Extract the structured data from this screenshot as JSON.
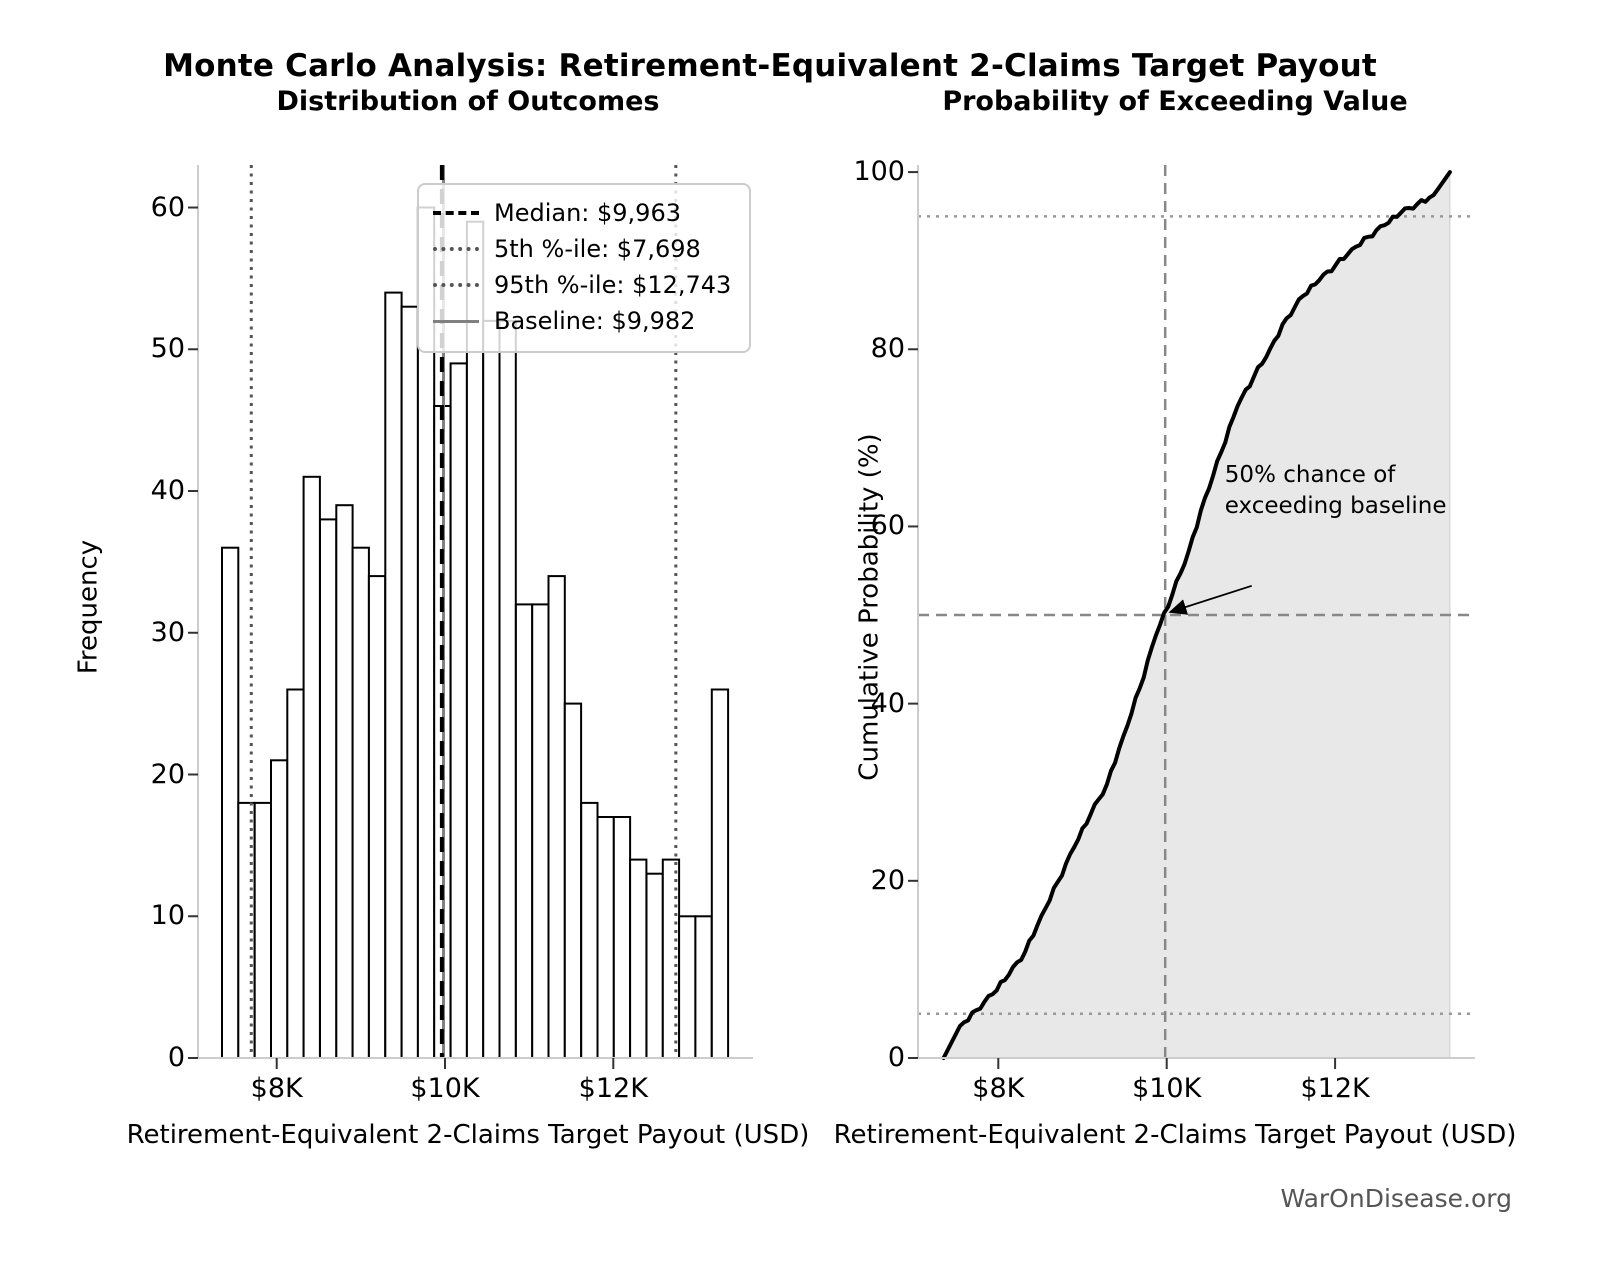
{
  "figure": {
    "title": "Monte Carlo Analysis: Retirement-Equivalent 2-Claims Target Payout",
    "footer": "WarOnDisease.org"
  },
  "chart_data": [
    {
      "type": "bar",
      "subtype": "histogram",
      "title": "Distribution of Outcomes",
      "xlabel": "Retirement-Equivalent 2-Claims Target Payout (USD)",
      "ylabel": "Frequency",
      "bin_start_usd": 7350,
      "bin_width_usd": 194,
      "frequencies": [
        36,
        18,
        18,
        21,
        26,
        41,
        38,
        39,
        36,
        34,
        54,
        53,
        60,
        46,
        49,
        59,
        52,
        52,
        32,
        32,
        34,
        25,
        18,
        17,
        17,
        14,
        13,
        14,
        10,
        10,
        26
      ],
      "xlim_usd": [
        7050,
        13660
      ],
      "ylim": [
        0,
        63
      ],
      "xticks": [
        {
          "value_usd": 8000,
          "label": "$8K"
        },
        {
          "value_usd": 10000,
          "label": "$10K"
        },
        {
          "value_usd": 12000,
          "label": "$12K"
        }
      ],
      "yticks": [
        0,
        10,
        20,
        30,
        40,
        50,
        60
      ],
      "grid": false,
      "bar_fill": "#ffffff",
      "bar_stroke": "#000000",
      "legend_position": "upper-right-inside",
      "reference_lines": [
        {
          "name": "median",
          "value_usd": 9963,
          "style": "dashed",
          "color": "#000000",
          "label": "Median: $9,963"
        },
        {
          "name": "5th-percentile",
          "value_usd": 7698,
          "style": "dotted",
          "color": "#555555",
          "label": "5th %-ile: $7,698"
        },
        {
          "name": "95th-percentile",
          "value_usd": 12743,
          "style": "dotted",
          "color": "#555555",
          "label": "95th %-ile: $12,743"
        },
        {
          "name": "baseline",
          "value_usd": 9982,
          "style": "solid",
          "color": "#808080",
          "label": "Baseline: $9,982"
        }
      ]
    },
    {
      "type": "line",
      "subtype": "empirical-cdf",
      "title": "Probability of Exceeding Value",
      "xlabel": "Retirement-Equivalent 2-Claims Target Payout (USD)",
      "ylabel": "Cumulative Probability (%)",
      "x_start_usd": 7350,
      "x_step_usd": 194,
      "cumulative_pct": [
        0,
        3.6,
        5.4,
        7.2,
        9.4,
        12.0,
        16.1,
        19.9,
        23.8,
        27.5,
        30.9,
        36.3,
        41.7,
        47.7,
        52.3,
        57.2,
        63.2,
        68.4,
        73.6,
        76.9,
        80.1,
        83.5,
        86.0,
        87.8,
        89.5,
        91.3,
        92.7,
        94.0,
        95.4,
        96.4,
        97.4,
        100
      ],
      "xlim_usd": [
        7050,
        13660
      ],
      "ylim": [
        0,
        100.8
      ],
      "xticks": [
        {
          "value_usd": 8000,
          "label": "$8K"
        },
        {
          "value_usd": 10000,
          "label": "$10K"
        },
        {
          "value_usd": 12000,
          "label": "$12K"
        }
      ],
      "yticks": [
        0,
        20,
        40,
        60,
        80,
        100
      ],
      "grid": false,
      "curve_color": "#000000",
      "fill_color": "#e8e8e8",
      "dotted_hlines_pct": [
        5,
        95
      ],
      "crosshair": {
        "x_usd": 9982,
        "y_pct": 50,
        "style": "dashed",
        "color": "#888888"
      },
      "annotation": {
        "line1": "50% chance of",
        "line2": "exceeding baseline",
        "text_x_usd": 10690,
        "text_y_pct": 67.5,
        "arrow_from": {
          "x_usd": 11010,
          "y_pct": 53.3
        },
        "arrow_to": {
          "x_usd": 9982,
          "y_pct": 50
        }
      }
    }
  ]
}
